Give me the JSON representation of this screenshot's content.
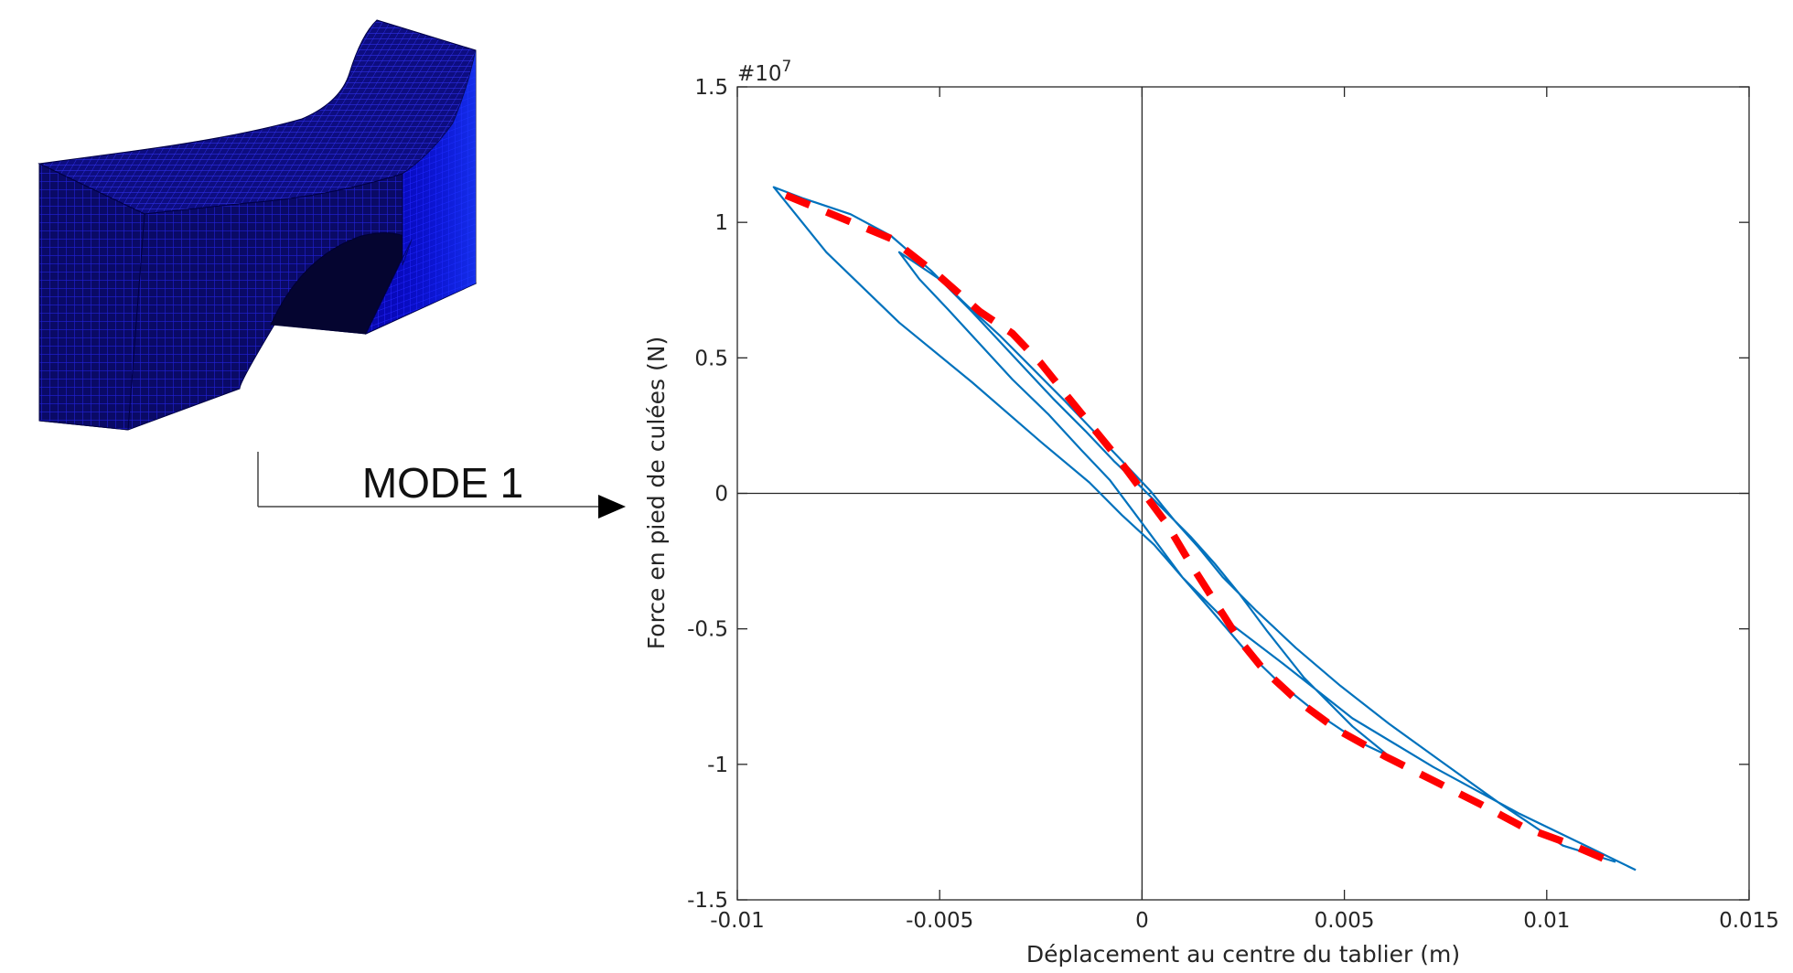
{
  "figure": {
    "mode_label": "MODE 1"
  },
  "chart_data": {
    "type": "line",
    "title": "",
    "xlabel": "Déplacement au centre du tablier (m)",
    "ylabel": "Force en pied de culées (N)",
    "y_exponent_label": "#10",
    "y_exponent_power": "7",
    "xlim": [
      -0.01,
      0.015
    ],
    "ylim": [
      -15000000,
      15000000
    ],
    "x_ticks": [
      -0.01,
      -0.005,
      0,
      0.005,
      0.01,
      0.015
    ],
    "x_tick_labels": [
      "-0.01",
      "-0.005",
      "0",
      "0.005",
      "0.01",
      "0.015"
    ],
    "y_ticks": [
      -15000000,
      -10000000,
      -5000000,
      0,
      5000000,
      10000000,
      15000000
    ],
    "y_tick_labels": [
      "-1.5",
      "-1",
      "-0.5",
      "0",
      "0.5",
      "1",
      "1.5"
    ],
    "zero_lines": true,
    "grid": false,
    "colors": {
      "hysteresis": "#0072BD",
      "envelope": "#FF0000",
      "axes": "#262626"
    },
    "series": [
      {
        "style": "solid",
        "x": [
          0.0122,
          0.0111,
          0.0093,
          0.0072,
          0.0052,
          0.0035,
          0.002,
          0.001,
          0.0003,
          -0.0005,
          -0.0013,
          -0.0025,
          -0.0042,
          -0.006,
          -0.0078,
          -0.0091,
          -0.0084,
          -0.0072,
          -0.0062,
          -0.0052,
          -0.0042,
          -0.0032,
          -0.0022,
          -0.0014,
          -0.0007,
          0.0,
          0.0006,
          0.0012,
          0.0018,
          0.0024,
          0.0031,
          0.004,
          0.0052,
          0.0061,
          0.0054,
          0.0044,
          0.0034,
          0.0025,
          0.0017,
          0.001,
          0.0004,
          -0.0002,
          -0.0008,
          -0.0015,
          -0.0023,
          -0.0032,
          -0.004,
          -0.0048,
          -0.0055,
          -0.006,
          -0.0056,
          -0.005,
          -0.0043,
          -0.0035,
          -0.0027,
          -0.0019,
          -0.0012,
          -0.0005,
          0.0002,
          0.0008,
          0.0014,
          0.002,
          0.0028,
          0.0038,
          0.0049,
          0.0061,
          0.0074,
          0.0088,
          0.0104,
          0.0117
        ],
        "y": [
          -13900000,
          -13100000,
          -11800000,
          -10100000,
          -8300000,
          -6300000,
          -4600000,
          -3100000,
          -1900000,
          -800000,
          400000,
          1900000,
          4100000,
          6300000,
          8900000,
          11300000,
          10900000,
          10300000,
          9500000,
          8200000,
          6700000,
          5100000,
          3500000,
          2300000,
          1200000,
          200000,
          -700000,
          -1600000,
          -2600000,
          -3700000,
          -5100000,
          -6800000,
          -8600000,
          -9700000,
          -9200000,
          -8200000,
          -7000000,
          -5700000,
          -4300000,
          -3100000,
          -1900000,
          -700000,
          500000,
          1600000,
          2900000,
          4200000,
          5500000,
          6800000,
          7900000,
          8900000,
          8500000,
          7900000,
          6900000,
          5800000,
          4600000,
          3400000,
          2300000,
          1200000,
          100000,
          -1000000,
          -2000000,
          -3100000,
          -4300000,
          -5700000,
          -7100000,
          -8500000,
          -9900000,
          -11400000,
          -13000000,
          -13600000
        ]
      },
      {
        "style": "dashed",
        "x": [
          -0.0088,
          -0.0075,
          -0.0062,
          -0.005,
          -0.004,
          -0.0032,
          -0.0025,
          -0.0018,
          -0.0012,
          -0.0006,
          -0.0002,
          0.0002,
          0.0006,
          0.0012,
          0.0018,
          0.0024,
          0.003,
          0.0038,
          0.0048,
          0.006,
          0.0072,
          0.0084,
          0.0094,
          0.0105,
          0.0116
        ],
        "y": [
          11000000,
          10200000,
          9400000,
          8000000,
          6700000,
          5900000,
          4800000,
          3500000,
          2400000,
          1300000,
          500000,
          -300000,
          -1100000,
          -2600000,
          -4000000,
          -5400000,
          -6500000,
          -7600000,
          -8700000,
          -9700000,
          -10600000,
          -11500000,
          -12300000,
          -12900000,
          -13600000
        ]
      }
    ]
  }
}
